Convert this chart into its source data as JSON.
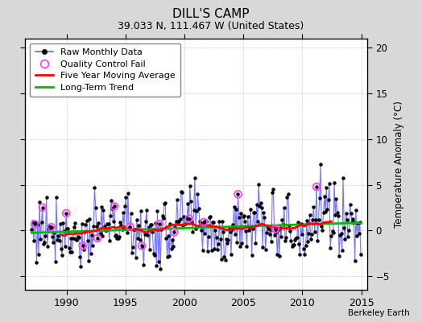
{
  "title": "DILL'S CAMP",
  "subtitle": "39.033 N, 111.467 W (United States)",
  "ylabel": "Temperature Anomaly (°C)",
  "credit": "Berkeley Earth",
  "xlim": [
    1986.5,
    2015.5
  ],
  "ylim": [
    -6.5,
    21
  ],
  "yticks": [
    -5,
    0,
    5,
    10,
    15,
    20
  ],
  "xticks": [
    1990,
    1995,
    2000,
    2005,
    2010,
    2015
  ],
  "bg_color": "#d8d8d8",
  "plot_bg_color": "#ffffff",
  "line_color": "#6666ff",
  "ma_color": "#ff0000",
  "trend_color": "#00bb00",
  "qc_color": "#ff44ff",
  "seed": 77,
  "title_fontsize": 11,
  "subtitle_fontsize": 9,
  "legend_fontsize": 8
}
